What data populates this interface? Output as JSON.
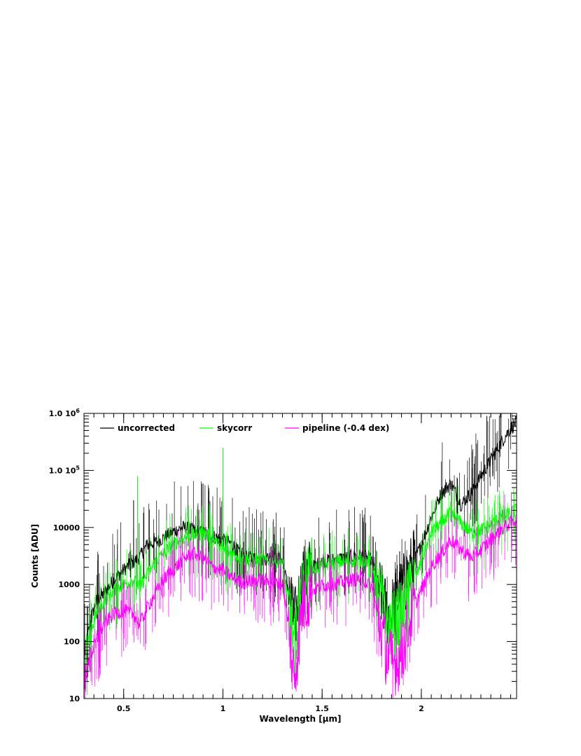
{
  "chart_data": {
    "type": "line",
    "xlabel": "Wavelength [μm]",
    "ylabel": "Counts [ADU]",
    "xlim": [
      0.3,
      2.48
    ],
    "ylim": [
      10,
      1000000
    ],
    "yscale": "log",
    "grid": false,
    "legend_placement": "top-left",
    "x_ticks": [
      {
        "value": 0.5,
        "label": "0.5"
      },
      {
        "value": 1.0,
        "label": "1"
      },
      {
        "value": 1.5,
        "label": "1.5"
      },
      {
        "value": 2.0,
        "label": "2"
      }
    ],
    "y_ticks": [
      {
        "value": 10,
        "label": "10"
      },
      {
        "value": 100,
        "label": "100"
      },
      {
        "value": 1000,
        "label": "1000"
      },
      {
        "value": 10000,
        "label": "10000"
      },
      {
        "value": 100000,
        "label": "1.0  10^5"
      },
      {
        "value": 1000000,
        "label": "1.0  10^6"
      }
    ],
    "series": [
      {
        "name": "uncorrected",
        "color": "#000000",
        "x": [
          0.3,
          0.33,
          0.36,
          0.4,
          0.45,
          0.5,
          0.55,
          0.58,
          0.62,
          0.66,
          0.7,
          0.75,
          0.8,
          0.85,
          0.9,
          0.95,
          1.0,
          1.05,
          1.1,
          1.15,
          1.2,
          1.25,
          1.3,
          1.33,
          1.36,
          1.4,
          1.45,
          1.5,
          1.55,
          1.6,
          1.65,
          1.7,
          1.75,
          1.8,
          1.83,
          1.86,
          1.9,
          1.95,
          2.0,
          2.05,
          2.1,
          2.15,
          2.2,
          2.25,
          2.3,
          2.35,
          2.4,
          2.45,
          2.48
        ],
        "y": [
          60,
          200,
          500,
          700,
          1200,
          1800,
          2500,
          3000,
          5000,
          5500,
          6500,
          8500,
          10000,
          9000,
          8000,
          7000,
          6000,
          5000,
          3000,
          2900,
          2700,
          3200,
          2600,
          800,
          200,
          1200,
          2000,
          2500,
          2700,
          2900,
          3100,
          3200,
          2700,
          600,
          300,
          400,
          800,
          2000,
          5000,
          15000,
          40000,
          60000,
          25000,
          40000,
          80000,
          150000,
          300000,
          550000,
          700000
        ]
      },
      {
        "name": "skycorr",
        "color": "#00ff00",
        "x": [
          0.3,
          0.33,
          0.36,
          0.4,
          0.45,
          0.5,
          0.55,
          0.58,
          0.62,
          0.66,
          0.7,
          0.75,
          0.8,
          0.85,
          0.9,
          0.95,
          1.0,
          1.05,
          1.1,
          1.15,
          1.2,
          1.25,
          1.3,
          1.33,
          1.36,
          1.4,
          1.45,
          1.5,
          1.55,
          1.6,
          1.65,
          1.7,
          1.75,
          1.8,
          1.83,
          1.86,
          1.9,
          1.95,
          2.0,
          2.05,
          2.1,
          2.15,
          2.2,
          2.25,
          2.3,
          2.35,
          2.4,
          2.45,
          2.48
        ],
        "y": [
          40,
          120,
          300,
          500,
          800,
          1000,
          1200,
          900,
          1500,
          2500,
          3500,
          5000,
          6500,
          7500,
          8000,
          6500,
          4000,
          3500,
          2800,
          2700,
          2600,
          2600,
          2400,
          500,
          80,
          800,
          1800,
          2200,
          2300,
          2500,
          2600,
          2700,
          2400,
          500,
          200,
          200,
          300,
          800,
          2500,
          8000,
          12000,
          18000,
          12000,
          8000,
          9000,
          11000,
          15000,
          18000,
          20000
        ]
      },
      {
        "name": "pipeline (-0.4 dex)",
        "color": "#ff00ff",
        "x": [
          0.3,
          0.33,
          0.36,
          0.4,
          0.45,
          0.5,
          0.55,
          0.58,
          0.62,
          0.66,
          0.7,
          0.75,
          0.8,
          0.85,
          0.9,
          0.95,
          1.0,
          1.05,
          1.1,
          1.15,
          1.2,
          1.25,
          1.3,
          1.33,
          1.36,
          1.4,
          1.45,
          1.5,
          1.55,
          1.6,
          1.65,
          1.7,
          1.75,
          1.8,
          1.83,
          1.86,
          1.9,
          1.95,
          2.0,
          2.05,
          2.1,
          2.15,
          2.2,
          2.25,
          2.3,
          2.35,
          2.4,
          2.45,
          2.48
        ],
        "y": [
          20,
          50,
          100,
          200,
          300,
          350,
          300,
          200,
          400,
          700,
          1200,
          1800,
          2800,
          3500,
          3000,
          2000,
          1800,
          1300,
          1100,
          1150,
          1200,
          1100,
          1000,
          200,
          20,
          400,
          800,
          950,
          1000,
          1100,
          1200,
          1300,
          900,
          150,
          50,
          40,
          60,
          300,
          800,
          2000,
          3500,
          6000,
          4000,
          3000,
          4000,
          6000,
          9000,
          12000,
          14000
        ]
      }
    ],
    "annotations": [
      {
        "x": 0.55,
        "y": 30000,
        "series": "uncorrected"
      },
      {
        "x": 0.57,
        "y": 80000,
        "series": "skycorr"
      },
      {
        "x": 1.0,
        "y": 250000,
        "series": "skycorr"
      },
      {
        "x": 2.33,
        "y": 900000,
        "series": "uncorrected"
      }
    ]
  }
}
